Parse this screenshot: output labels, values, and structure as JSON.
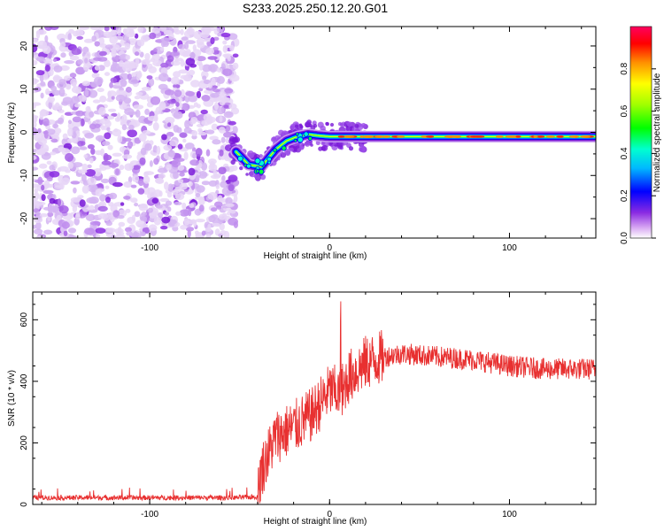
{
  "chart_data": [
    {
      "type": "heatmap",
      "title": "S233.2025.250.12.20.G01",
      "xlabel": "Height of straight line (km)",
      "ylabel": "Frequency (Hz)",
      "xlim": [
        -165,
        148
      ],
      "ylim": [
        -24.5,
        24.5
      ],
      "x_ticks": [
        -100,
        0,
        100
      ],
      "y_ticks": [
        -20,
        -10,
        0,
        10,
        20
      ],
      "noise_region_x": [
        -165,
        -52
      ],
      "ridge": {
        "description_points_x": [
          -52,
          -45,
          -38,
          -30,
          -24,
          -18,
          -12,
          -6,
          0,
          10,
          40,
          80,
          148
        ],
        "description_points_y": [
          -4.5,
          -7.5,
          -8.0,
          -4.0,
          -2.0,
          -1.0,
          -0.5,
          -0.8,
          -1.0,
          -1.0,
          -1.0,
          -1.0,
          -1.0
        ]
      },
      "colorbar": {
        "label": "Normalized spectral amplitude",
        "range": [
          0,
          1
        ],
        "ticks": [
          0.0,
          0.2,
          0.4,
          0.6,
          0.8
        ]
      }
    },
    {
      "type": "line",
      "xlabel": "Height of straight line (km)",
      "ylabel": "SNR (10 * v/v)",
      "xlim": [
        -165,
        148
      ],
      "ylim": [
        0,
        690
      ],
      "x_ticks": [
        -100,
        0,
        100
      ],
      "y_ticks": [
        0,
        200,
        400,
        600
      ],
      "series_color": "#e83030",
      "trend_x": [
        -165,
        -52,
        -40,
        -38,
        -30,
        -20,
        -10,
        0,
        6,
        10,
        20,
        30,
        40,
        60,
        80,
        100,
        120,
        148
      ],
      "trend_y": [
        22,
        22,
        25,
        110,
        220,
        250,
        290,
        370,
        360,
        410,
        460,
        480,
        490,
        480,
        470,
        450,
        440,
        440
      ]
    }
  ]
}
